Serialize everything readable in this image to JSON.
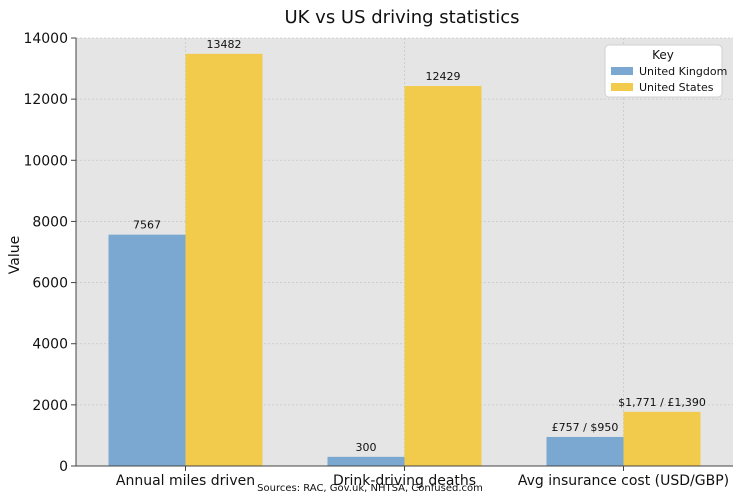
{
  "chart_data": {
    "type": "bar",
    "title": "UK vs US driving statistics",
    "xlabel": "",
    "ylabel": "Value",
    "ylim": [
      0,
      14000
    ],
    "yticks": [
      0,
      2000,
      4000,
      6000,
      8000,
      10000,
      12000,
      14000
    ],
    "categories": [
      "Annual miles driven",
      "Drink-driving deaths",
      "Avg insurance cost (USD/GBP)"
    ],
    "series": [
      {
        "name": "United Kingdom",
        "values": [
          7567,
          300,
          950
        ],
        "labels": [
          "7567",
          "300",
          "£757 / $950"
        ],
        "color": "#7ba8d0"
      },
      {
        "name": "United States",
        "values": [
          13482,
          12429,
          1771
        ],
        "labels": [
          "13482",
          "12429",
          "$1,771 / £1,390"
        ],
        "color": "#f2cb4d"
      }
    ],
    "legend": {
      "title": "Key",
      "position": "top-right"
    },
    "grid": true,
    "background": "#e5e5e5",
    "source": "Sources: RAC, Gov.uk, NHTSA, Confused.com"
  }
}
